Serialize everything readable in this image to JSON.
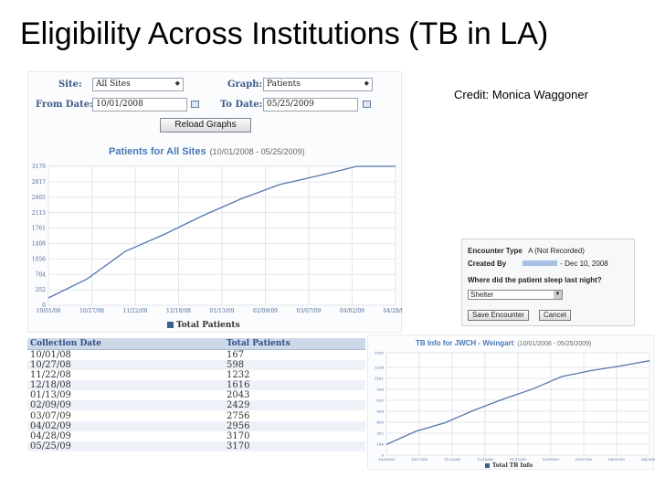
{
  "slide": {
    "title": "Eligibility Across Institutions (TB in LA)",
    "credit": "Credit: Monica Waggoner"
  },
  "filters": {
    "site_label": "Site:",
    "site_value": "All Sites",
    "graph_label": "Graph:",
    "graph_value": "Patients",
    "from_label": "From Date:",
    "from_value": "10/01/2008",
    "to_label": "To Date:",
    "to_value": "05/25/2009",
    "reload_label": "Reload Graphs"
  },
  "main_chart": {
    "heading": "Patients for All Sites",
    "range": "(10/01/2008 - 05/25/2009)",
    "legend": "Total Patients"
  },
  "side_chart": {
    "heading": "TB Info for JWCH - Weingart",
    "range": "(10/01/2008 - 05/25/2009)",
    "legend": "Total TB Info"
  },
  "table": {
    "headers": [
      "Collection Date",
      "Total Patients"
    ],
    "rows": [
      [
        "10/01/08",
        "167"
      ],
      [
        "10/27/08",
        "598"
      ],
      [
        "11/22/08",
        "1232"
      ],
      [
        "12/18/08",
        "1616"
      ],
      [
        "01/13/09",
        "2043"
      ],
      [
        "02/09/09",
        "2429"
      ],
      [
        "03/07/09",
        "2756"
      ],
      [
        "04/02/09",
        "2956"
      ],
      [
        "04/28/09",
        "3170"
      ],
      [
        "05/25/09",
        "3170"
      ]
    ]
  },
  "encounter": {
    "type_label": "Encounter Type",
    "type_value": "A (Not Recorded)",
    "created_label": "Created By",
    "created_value": "- Dec 10, 2008",
    "question": "Where did the patient sleep last night?",
    "answer": "Shelter",
    "save_label": "Save Encounter",
    "cancel_label": "Cancel"
  },
  "chart_data": [
    {
      "type": "line",
      "title": "Patients for All Sites",
      "subtitle": "(10/01/2008 - 05/25/2009)",
      "x": [
        "10/01/08",
        "10/27/08",
        "11/22/08",
        "12/18/08",
        "01/13/09",
        "02/09/09",
        "03/07/09",
        "04/02/09",
        "04/28/09",
        "05/25/09"
      ],
      "x_ticks": [
        "10/01/08",
        "10/27/08",
        "11/22/08",
        "12/18/08",
        "01/13/09",
        "02/09/09",
        "03/07/09",
        "04/02/09",
        "04/28/09"
      ],
      "y_ticks": [
        0,
        352,
        704,
        1056,
        1408,
        1761,
        2113,
        2465,
        2817,
        3170
      ],
      "ylim": [
        0,
        3170
      ],
      "series": [
        {
          "name": "Total Patients",
          "values": [
            167,
            598,
            1232,
            1616,
            2043,
            2429,
            2756,
            2956,
            3170,
            3170
          ]
        }
      ],
      "grid": true,
      "legend": "bottom",
      "color": "#5577aa"
    },
    {
      "type": "line",
      "title": "TB Info for JWCH - Weingart",
      "subtitle": "(10/01/2008 - 05/25/2009)",
      "x_ticks": [
        "10/01/08",
        "10/27/08",
        "11/22/08",
        "12/18/08",
        "01/13/09",
        "02/09/09",
        "03/07/09",
        "04/02/09",
        "04/28/09"
      ],
      "y_ticks": [
        0,
        166,
        332,
        498,
        664,
        830,
        996,
        1162,
        1328,
        1550
      ],
      "ylim": [
        0,
        1550
      ],
      "series": [
        {
          "name": "Total TB Info",
          "values": [
            160,
            360,
            490,
            680,
            850,
            1000,
            1190,
            1280,
            1350,
            1430
          ]
        }
      ],
      "grid": true,
      "legend": "bottom",
      "color": "#5577aa"
    }
  ]
}
